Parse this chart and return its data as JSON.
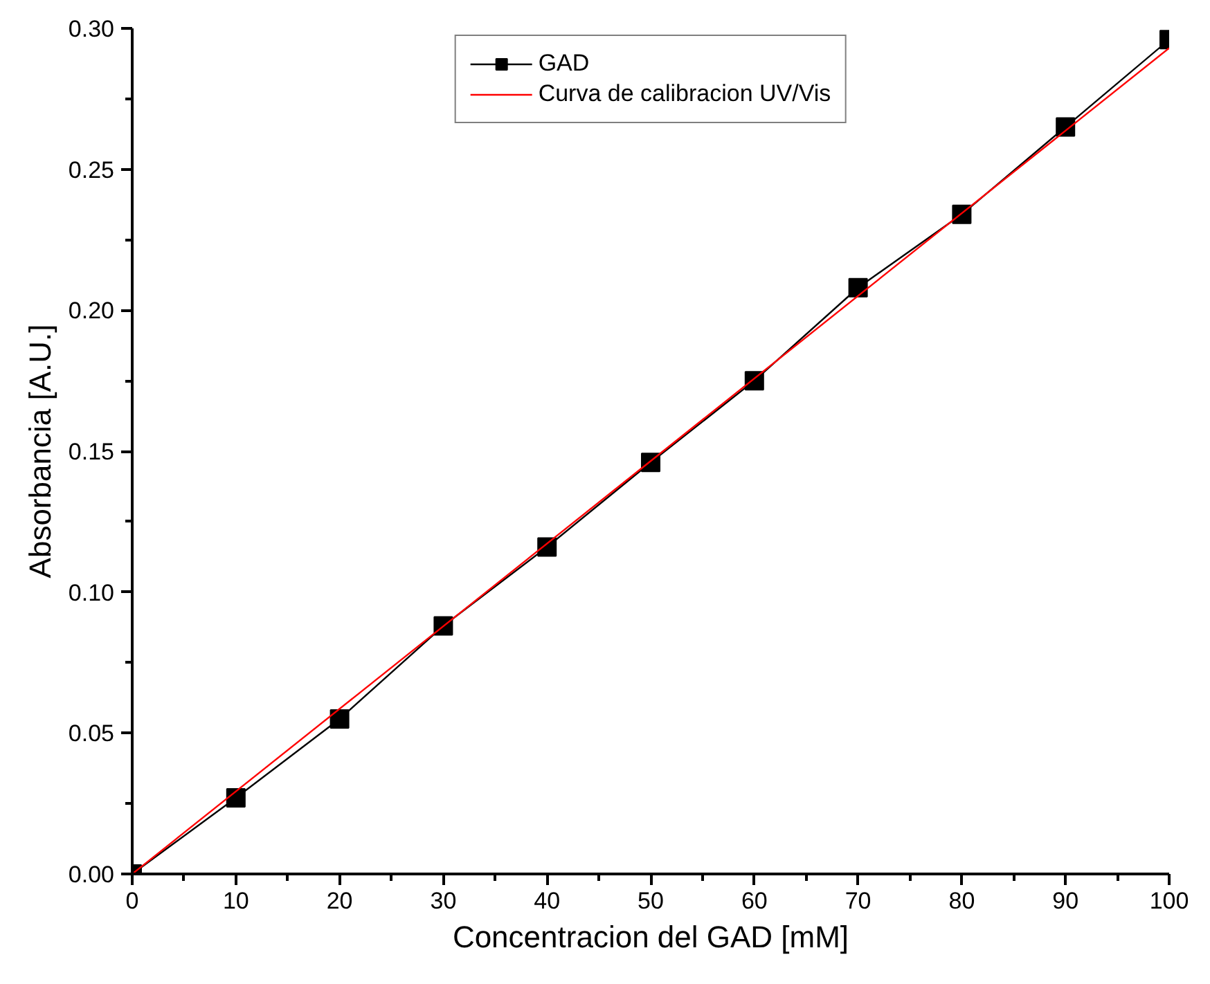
{
  "chart_data": {
    "type": "line",
    "xlabel": "Concentracion del GAD [mM]",
    "ylabel": "Absorbancia [A.U.]",
    "legend": "top",
    "grid": false,
    "xlim": [
      0,
      100
    ],
    "xticks": [
      0,
      10,
      20,
      30,
      40,
      50,
      60,
      70,
      80,
      90,
      100
    ],
    "ylim": [
      0,
      0.3
    ],
    "yticks": [
      {
        "value": 0,
        "label": "0.00"
      },
      0.05,
      {
        "value": 0.1,
        "label": "0.10"
      },
      0.15,
      {
        "value": 0.2,
        "label": "0.20"
      },
      0.25,
      {
        "value": 0.3,
        "label": "0.30"
      }
    ],
    "series": [
      {
        "name": "GAD",
        "marker": "square",
        "color": "#000000",
        "x": [
          0,
          10,
          20,
          30,
          40,
          50,
          60,
          70,
          80,
          90,
          100
        ],
        "values": [
          0,
          0.027,
          0.055,
          0.088,
          0.116,
          0.146,
          0.175,
          0.208,
          0.234,
          0.265,
          0.296
        ]
      },
      {
        "name": "Curva de calibracion UV/Vis",
        "marker": "none",
        "color": "#ff0000",
        "x": [
          0,
          100
        ],
        "values": [
          0,
          0.293
        ]
      }
    ]
  }
}
